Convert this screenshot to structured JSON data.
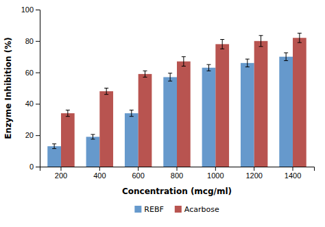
{
  "chart_data": {
    "type": "bar",
    "xlabel": "Concentration (mcg/ml)",
    "ylabel": "Enzyme Inhibition (%)",
    "categories": [
      200,
      400,
      600,
      800,
      1000,
      1200,
      1400
    ],
    "series": [
      {
        "name": "REBF",
        "color": "#6699cc",
        "values": [
          13,
          19,
          34,
          57,
          63,
          66,
          70
        ],
        "errors": [
          1.5,
          1.5,
          2.0,
          2.5,
          2.0,
          2.5,
          2.5
        ]
      },
      {
        "name": "Acarbose",
        "color": "#b85450",
        "values": [
          34,
          48,
          59,
          67,
          78,
          80,
          82
        ],
        "errors": [
          2.0,
          2.0,
          2.0,
          3.0,
          3.0,
          3.5,
          3.0
        ]
      }
    ],
    "ylim": [
      0,
      100
    ],
    "yticks": [
      0,
      20,
      40,
      60,
      80,
      100
    ],
    "grid": false,
    "legend": "bottom"
  }
}
